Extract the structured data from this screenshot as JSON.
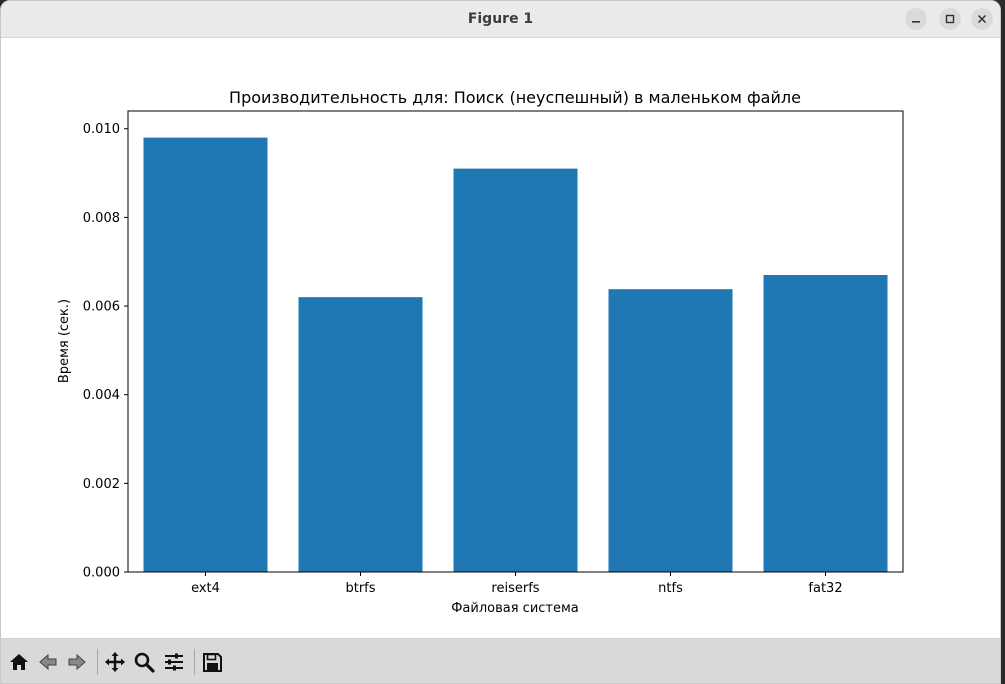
{
  "window": {
    "title": "Figure 1"
  },
  "toolbar": {
    "buttons": [
      "home-icon",
      "back-arrow-icon",
      "forward-arrow-icon",
      "pan-icon",
      "zoom-icon",
      "configure-subplots-icon",
      "save-icon"
    ]
  },
  "chart_data": {
    "type": "bar",
    "title": "Производительность для: Поиск (неуспешный) в маленьком файле",
    "xlabel": "Файловая система",
    "ylabel": "Время (сек.)",
    "categories": [
      "ext4",
      "btrfs",
      "reiserfs",
      "ntfs",
      "fat32"
    ],
    "values": [
      0.0098,
      0.0062,
      0.0091,
      0.00638,
      0.0067
    ],
    "ylim": [
      0,
      0.0104
    ],
    "yticks": [
      "0.000",
      "0.002",
      "0.004",
      "0.006",
      "0.008",
      "0.010"
    ],
    "ytick_values": [
      0,
      0.002,
      0.004,
      0.006,
      0.008,
      0.01
    ],
    "bar_color": "#1f77b4",
    "grid": false,
    "legend": "none"
  }
}
